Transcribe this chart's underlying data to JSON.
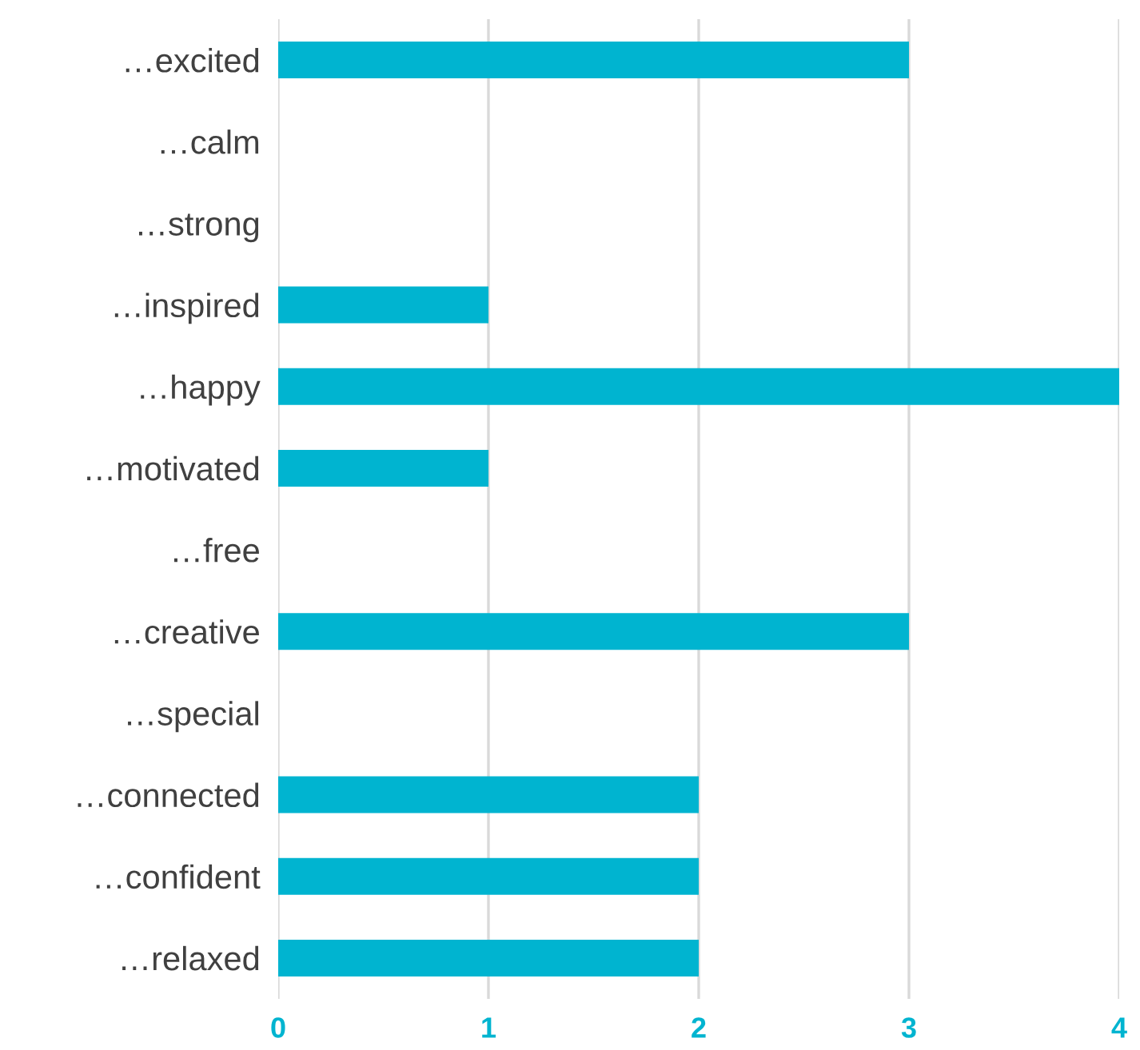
{
  "chart_data": {
    "type": "bar",
    "orientation": "horizontal",
    "categories": [
      "…excited",
      "…calm",
      "…strong",
      "…inspired",
      "…happy",
      "…motivated",
      "…free",
      "…creative",
      "…special",
      "…connected",
      "…confident",
      "…relaxed"
    ],
    "values": [
      3,
      0,
      0,
      1,
      4,
      1,
      0,
      3,
      0,
      2,
      2,
      2
    ],
    "color": "#00b4d0",
    "xlim": [
      0,
      4
    ],
    "xticks": [
      0,
      1,
      2,
      3,
      4
    ],
    "grid": "x"
  }
}
